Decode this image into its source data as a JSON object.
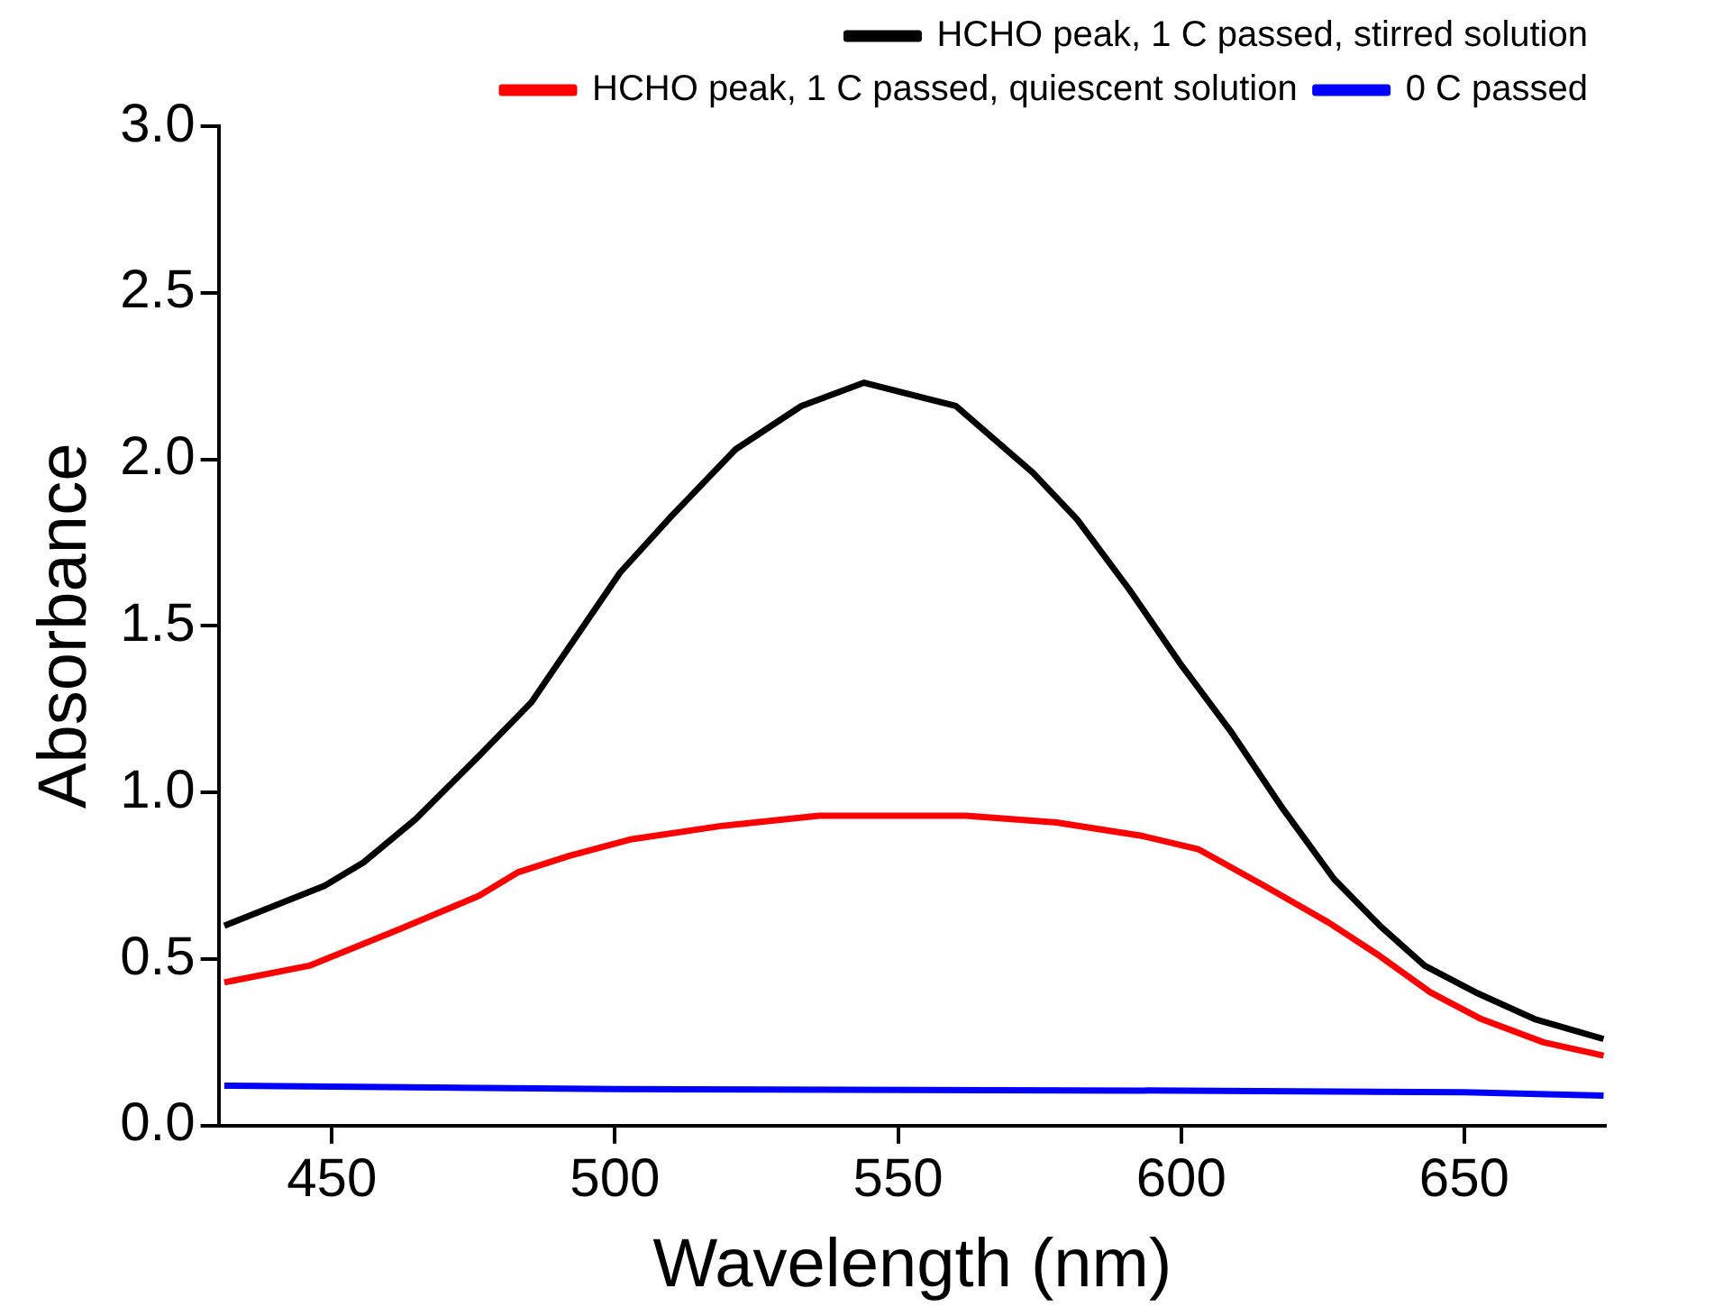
{
  "chart_data": {
    "type": "line",
    "xlabel": "Wavelength (nm)",
    "ylabel": "Absorbance",
    "xlim": [
      430,
      675
    ],
    "xticks": [
      450,
      500,
      550,
      600,
      650
    ],
    "ylim": [
      0,
      3
    ],
    "yticks": [
      {
        "value": 0,
        "label": "0.0"
      },
      {
        "value": 0.5,
        "label": "0.5"
      },
      {
        "value": 1,
        "label": "1.0"
      },
      {
        "value": 1.5,
        "label": "1.5"
      },
      {
        "value": 2,
        "label": "2.0"
      },
      {
        "value": 2.5,
        "label": "2.5"
      },
      {
        "value": 3,
        "label": "3.0"
      }
    ],
    "grid": false,
    "legend": "top right",
    "marker": "none",
    "line_style": "solid",
    "series": [
      {
        "name": "HCHO peak, 1 C passed, stirred solution",
        "color": "#000000",
        "x": [
          431,
          448.7,
          455.6,
          464.8,
          476,
          485.2,
          500.9,
          510,
          521.3,
          532.9,
          544,
          560.2,
          573.8,
          581.6,
          590.8,
          599.7,
          608.9,
          618,
          627,
          635.1,
          643,
          652,
          662.4,
          674.6
        ],
        "values": [
          0.6,
          0.72,
          0.79,
          0.92,
          1.11,
          1.27,
          1.66,
          1.83,
          2.03,
          2.16,
          2.23,
          2.16,
          1.96,
          1.82,
          1.61,
          1.39,
          1.18,
          0.95,
          0.74,
          0.6,
          0.48,
          0.4,
          0.32,
          0.26
        ]
      },
      {
        "name": "HCHO peak, 1 C passed, quiescent solution",
        "color": "#ff0000",
        "x": [
          431,
          446,
          462,
          476,
          482.8,
          492,
          503,
          519,
          536,
          562,
          578,
          593,
          603,
          614.7,
          626,
          635,
          644,
          653,
          664,
          674.6
        ],
        "values": [
          0.43,
          0.48,
          0.59,
          0.69,
          0.76,
          0.81,
          0.86,
          0.9,
          0.93,
          0.93,
          0.91,
          0.87,
          0.83,
          0.72,
          0.61,
          0.51,
          0.4,
          0.32,
          0.25,
          0.21
        ]
      },
      {
        "name": "0 C passed",
        "color": "#0000ff",
        "x": [
          431,
          500,
          600,
          650,
          674.6
        ],
        "values": [
          0.12,
          0.11,
          0.105,
          0.1,
          0.09
        ]
      }
    ]
  }
}
